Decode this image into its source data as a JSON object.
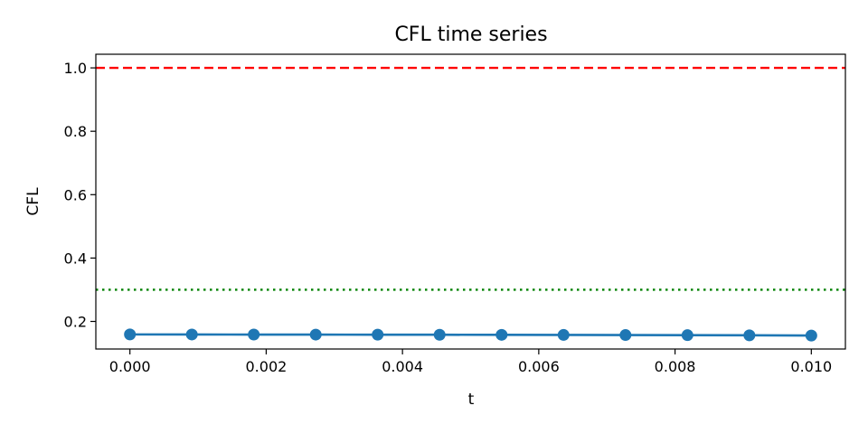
{
  "chart_data": {
    "type": "line",
    "title": "CFL time series",
    "xlabel": "t",
    "ylabel": "CFL",
    "xlim": [
      -0.0005,
      0.0105
    ],
    "ylim": [
      0.113,
      1.043
    ],
    "xticks": [
      0.0,
      0.002,
      0.004,
      0.006,
      0.008,
      0.01
    ],
    "xtick_labels": [
      "0.000",
      "0.002",
      "0.004",
      "0.006",
      "0.008",
      "0.010"
    ],
    "yticks": [
      0.2,
      0.4,
      0.6,
      0.8,
      1.0
    ],
    "ytick_labels": [
      "0.2",
      "0.4",
      "0.6",
      "0.8",
      "1.0"
    ],
    "grid": false,
    "legend": false,
    "series": [
      {
        "color": "#1f77b4",
        "marker": "circle",
        "x": [
          0.0,
          0.000909,
          0.001818,
          0.002727,
          0.003636,
          0.004545,
          0.005455,
          0.006364,
          0.007273,
          0.008182,
          0.009091,
          0.01
        ],
        "y": [
          0.159,
          0.1588,
          0.1586,
          0.1584,
          0.1582,
          0.158,
          0.1577,
          0.1574,
          0.1571,
          0.1567,
          0.1562,
          0.1555
        ]
      }
    ],
    "reference_lines": [
      {
        "y": 1.0,
        "color": "#ff0000",
        "style": "dashed"
      },
      {
        "y": 0.3,
        "color": "#008000",
        "style": "dotted"
      }
    ]
  }
}
